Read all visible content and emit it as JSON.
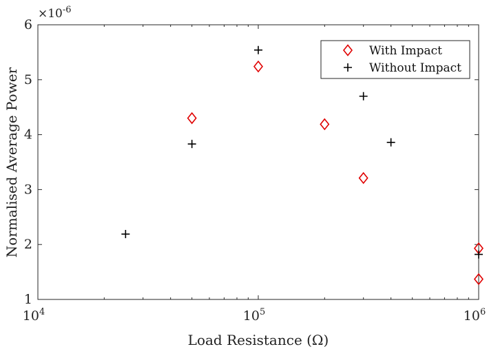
{
  "chart_data": {
    "type": "scatter",
    "xlabel": "Load Resistance (Ω)",
    "ylabel": "Normalised Average Power",
    "xscale": "log",
    "xlim": [
      10000,
      1000000
    ],
    "ylim": [
      1,
      6
    ],
    "y_multiplier": {
      "base": "×10",
      "exponent": "-6"
    },
    "x_ticks": [
      {
        "value": 10000,
        "base": "10",
        "exp": "4"
      },
      {
        "value": 100000,
        "base": "10",
        "exp": "5"
      },
      {
        "value": 1000000,
        "base": "10",
        "exp": "6"
      }
    ],
    "y_ticks": [
      1,
      2,
      3,
      4,
      5,
      6
    ],
    "grid": false,
    "legend_position": "top-right",
    "series": [
      {
        "name": "With Impact",
        "marker": "diamond",
        "color": "#e00000",
        "points": [
          {
            "x": 50000,
            "y": 4.3
          },
          {
            "x": 100000,
            "y": 5.24
          },
          {
            "x": 200000,
            "y": 4.19
          },
          {
            "x": 300000,
            "y": 3.21
          },
          {
            "x": 1000000,
            "y": 1.93
          },
          {
            "x": 1000000,
            "y": 1.37
          }
        ]
      },
      {
        "name": "Without Impact",
        "marker": "plus",
        "color": "#000000",
        "points": [
          {
            "x": 25000,
            "y": 2.19
          },
          {
            "x": 50000,
            "y": 3.83
          },
          {
            "x": 100000,
            "y": 5.54
          },
          {
            "x": 300000,
            "y": 4.7
          },
          {
            "x": 400000,
            "y": 3.86
          },
          {
            "x": 1000000,
            "y": 1.82
          }
        ]
      }
    ]
  }
}
